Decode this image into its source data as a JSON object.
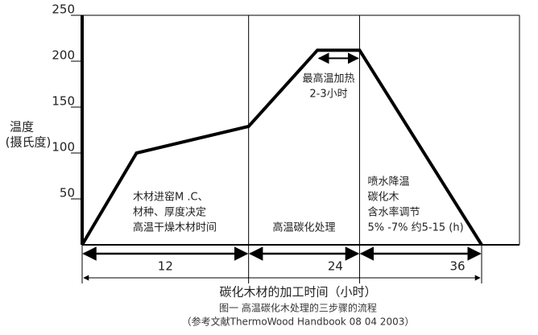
{
  "chart_data": {
    "type": "line",
    "y_label_lines": [
      "温度",
      "(摄氏度)"
    ],
    "x_label": "碳化木材的加工时间（小时）",
    "caption_lines": [
      "图一  高温碳化木处理的三步骤的流程",
      "（参考文献ThermoWood Handbook 08 04 2003）"
    ],
    "xlim": [
      0,
      36
    ],
    "ylim": [
      0,
      250
    ],
    "yticks": [
      50,
      100,
      150,
      200,
      250
    ],
    "x": [
      0,
      4.9,
      15,
      21.2,
      25,
      36
    ],
    "series": [
      {
        "values": [
          0,
          100,
          129,
          212,
          212,
          0
        ],
        "color": "#000000"
      }
    ],
    "phases": [
      {
        "start": 0,
        "end": 15,
        "label": "12",
        "text": [
          "木材进窑M .C、",
          "材种、厚度决定",
          "高温干燥木材时间"
        ]
      },
      {
        "start": 15,
        "end": 25,
        "label": "24",
        "text": [
          "高温碳化处理"
        ]
      },
      {
        "start": 25,
        "end": 36,
        "label": "36",
        "text": [
          "喷水降温",
          "碳化木",
          "含水率调节",
          "5% -7% 约5-15 (h)"
        ]
      }
    ],
    "peak_annotation": [
      "最高温加热",
      "2-3小时"
    ]
  }
}
